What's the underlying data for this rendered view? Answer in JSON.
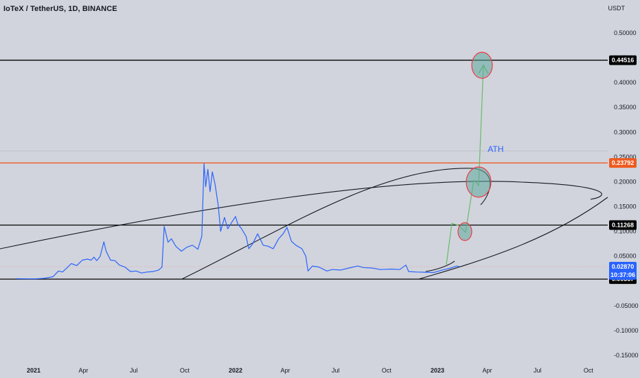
{
  "header": {
    "title": "IoTeX / TetherUS, 1D, BINANCE",
    "currency": "USDT"
  },
  "colors": {
    "background": "#d1d4dc",
    "price_line": "#2962ff",
    "black_line": "#000000",
    "orange_line": "#ef5a1f",
    "green_arrow": "#66bb6a",
    "red_circle": "#f23645",
    "teal_fill": "#5fa89c",
    "ath_text": "#2962ff",
    "countdown_badge": "#2962ff"
  },
  "chart_data": {
    "type": "line",
    "x_ticks": [
      "2021",
      "Apr",
      "Jul",
      "Oct",
      "2022",
      "Apr",
      "Jul",
      "Oct",
      "2023",
      "Apr",
      "Jul",
      "Oct"
    ],
    "y_ticks": [
      "0.50000",
      "0.45000",
      "0.40000",
      "0.35000",
      "0.30000",
      "0.25000",
      "0.20000",
      "0.15000",
      "0.10000",
      "0.05000",
      "-0.05000",
      "-0.10000",
      "-0.15000"
    ],
    "ylim": [
      -0.165,
      0.57
    ],
    "xlim": [
      "2020-12-01",
      "2023-12-01"
    ],
    "series": [
      {
        "values": [
          [
            "2020-12-01",
            0.0045
          ],
          [
            "2020-12-20",
            0.0042
          ],
          [
            "2021-01-05",
            0.0043
          ],
          [
            "2021-01-20",
            0.0052
          ],
          [
            "2021-02-05",
            0.0085
          ],
          [
            "2021-02-15",
            0.02
          ],
          [
            "2021-02-22",
            0.018
          ],
          [
            "2021-03-01",
            0.025
          ],
          [
            "2021-03-10",
            0.035
          ],
          [
            "2021-03-20",
            0.031
          ],
          [
            "2021-03-30",
            0.042
          ],
          [
            "2021-04-08",
            0.044
          ],
          [
            "2021-04-15",
            0.042
          ],
          [
            "2021-04-20",
            0.048
          ],
          [
            "2021-04-25",
            0.041
          ],
          [
            "2021-05-01",
            0.049
          ],
          [
            "2021-05-08",
            0.079
          ],
          [
            "2021-05-12",
            0.06
          ],
          [
            "2021-05-20",
            0.042
          ],
          [
            "2021-05-28",
            0.041
          ],
          [
            "2021-06-05",
            0.032
          ],
          [
            "2021-06-15",
            0.028
          ],
          [
            "2021-06-25",
            0.019
          ],
          [
            "2021-07-05",
            0.02
          ],
          [
            "2021-07-15",
            0.016
          ],
          [
            "2021-07-25",
            0.018
          ],
          [
            "2021-08-05",
            0.019
          ],
          [
            "2021-08-15",
            0.022
          ],
          [
            "2021-08-21",
            0.028
          ],
          [
            "2021-08-25",
            0.11
          ],
          [
            "2021-09-01",
            0.078
          ],
          [
            "2021-09-07",
            0.085
          ],
          [
            "2021-09-15",
            0.07
          ],
          [
            "2021-09-25",
            0.06
          ],
          [
            "2021-10-05",
            0.068
          ],
          [
            "2021-10-15",
            0.072
          ],
          [
            "2021-10-25",
            0.064
          ],
          [
            "2021-11-01",
            0.09
          ],
          [
            "2021-11-05",
            0.237
          ],
          [
            "2021-11-08",
            0.19
          ],
          [
            "2021-11-12",
            0.225
          ],
          [
            "2021-11-16",
            0.18
          ],
          [
            "2021-11-20",
            0.22
          ],
          [
            "2021-11-25",
            0.195
          ],
          [
            "2021-12-01",
            0.15
          ],
          [
            "2021-12-05",
            0.1
          ],
          [
            "2021-12-12",
            0.128
          ],
          [
            "2021-12-18",
            0.105
          ],
          [
            "2021-12-25",
            0.118
          ],
          [
            "2022-01-01",
            0.13
          ],
          [
            "2022-01-05",
            0.115
          ],
          [
            "2022-01-12",
            0.105
          ],
          [
            "2022-01-20",
            0.09
          ],
          [
            "2022-01-25",
            0.065
          ],
          [
            "2022-02-01",
            0.075
          ],
          [
            "2022-02-10",
            0.095
          ],
          [
            "2022-02-20",
            0.072
          ],
          [
            "2022-03-01",
            0.07
          ],
          [
            "2022-03-10",
            0.065
          ],
          [
            "2022-03-20",
            0.085
          ],
          [
            "2022-03-28",
            0.095
          ],
          [
            "2022-04-04",
            0.108
          ],
          [
            "2022-04-12",
            0.08
          ],
          [
            "2022-04-20",
            0.072
          ],
          [
            "2022-05-01",
            0.065
          ],
          [
            "2022-05-08",
            0.05
          ],
          [
            "2022-05-12",
            0.02
          ],
          [
            "2022-05-20",
            0.03
          ],
          [
            "2022-06-01",
            0.028
          ],
          [
            "2022-06-15",
            0.02
          ],
          [
            "2022-06-25",
            0.023
          ],
          [
            "2022-07-10",
            0.022
          ],
          [
            "2022-07-25",
            0.026
          ],
          [
            "2022-08-10",
            0.03
          ],
          [
            "2022-08-20",
            0.027
          ],
          [
            "2022-09-05",
            0.026
          ],
          [
            "2022-09-20",
            0.023
          ],
          [
            "2022-10-10",
            0.024
          ],
          [
            "2022-10-25",
            0.023
          ],
          [
            "2022-11-05",
            0.032
          ],
          [
            "2022-11-10",
            0.019
          ],
          [
            "2022-11-25",
            0.018
          ],
          [
            "2022-12-10",
            0.0175
          ],
          [
            "2022-12-25",
            0.017
          ],
          [
            "2023-01-10",
            0.022
          ],
          [
            "2023-01-25",
            0.026
          ],
          [
            "2023-02-05",
            0.03
          ],
          [
            "2023-02-10",
            0.0287
          ]
        ]
      }
    ],
    "horizontal_levels": [
      {
        "price": 0.44516,
        "label": "0.44516",
        "style": "black"
      },
      {
        "price": 0.23792,
        "label": "0.23792",
        "style": "orange"
      },
      {
        "price": 0.11268,
        "label": "0.11268",
        "style": "black"
      },
      {
        "price": 0.00367,
        "label": "0.00367",
        "style": "black"
      }
    ],
    "current_price": {
      "label": "0.02870",
      "countdown": "10:37:06",
      "price": 0.0287
    },
    "annotations": [
      {
        "text": "ATH",
        "date": "2023-04-02",
        "price": 0.26
      }
    ],
    "grid": false,
    "legend": "none"
  }
}
